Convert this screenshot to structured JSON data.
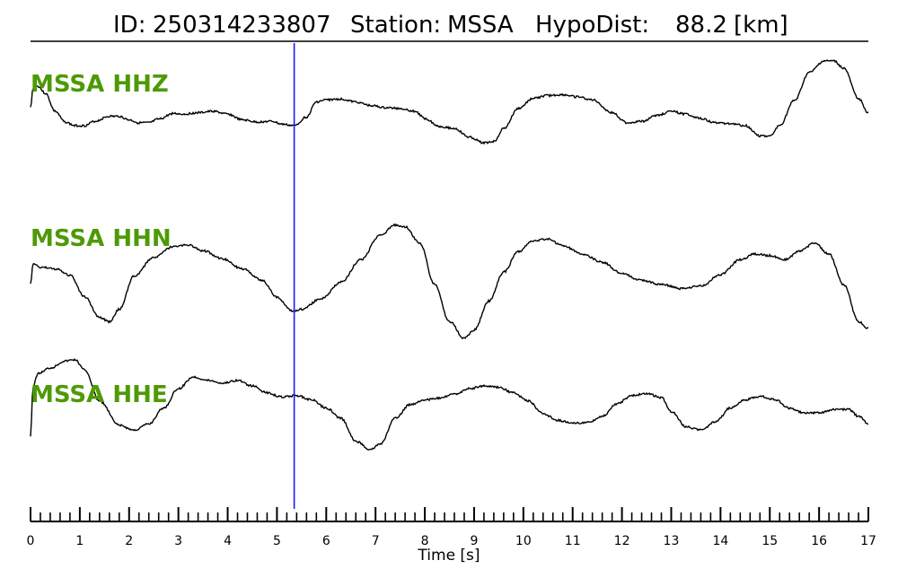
{
  "header": {
    "id_label": "ID:",
    "id_value": "250314233807",
    "station_label": "Station:",
    "station_value": "MSSA",
    "dist_label": "HypoDist:",
    "dist_value": "88.2",
    "dist_unit": "[km]"
  },
  "colors": {
    "trace": "#000000",
    "label": "#4e9a06",
    "marker": "#1a1aff",
    "axis": "#000000"
  },
  "chart_data": {
    "type": "line",
    "xlabel": "Time [s]",
    "xlim": [
      0,
      17
    ],
    "major_ticks": [
      0,
      1,
      2,
      3,
      4,
      5,
      6,
      7,
      8,
      9,
      10,
      11,
      12,
      13,
      14,
      15,
      16,
      17
    ],
    "minor_tick_step": 0.2,
    "marker_time": 5.35,
    "series": [
      {
        "name": "MSSA HHZ",
        "points": [
          [
            0,
            0.35
          ],
          [
            0.05,
            0.62
          ],
          [
            0.15,
            0.65
          ],
          [
            0.3,
            0.55
          ],
          [
            0.5,
            0.3
          ],
          [
            0.7,
            0.15
          ],
          [
            0.9,
            0.1
          ],
          [
            1.1,
            0.1
          ],
          [
            1.3,
            0.16
          ],
          [
            1.6,
            0.23
          ],
          [
            1.8,
            0.23
          ],
          [
            2.0,
            0.18
          ],
          [
            2.2,
            0.14
          ],
          [
            2.4,
            0.14
          ],
          [
            2.6,
            0.19
          ],
          [
            2.9,
            0.27
          ],
          [
            3.1,
            0.26
          ],
          [
            3.4,
            0.28
          ],
          [
            3.7,
            0.3
          ],
          [
            4.0,
            0.26
          ],
          [
            4.3,
            0.18
          ],
          [
            4.6,
            0.15
          ],
          [
            4.9,
            0.16
          ],
          [
            5.1,
            0.12
          ],
          [
            5.35,
            0.1
          ],
          [
            5.6,
            0.22
          ],
          [
            5.8,
            0.43
          ],
          [
            6.0,
            0.46
          ],
          [
            6.3,
            0.47
          ],
          [
            6.6,
            0.43
          ],
          [
            6.9,
            0.38
          ],
          [
            7.2,
            0.35
          ],
          [
            7.5,
            0.34
          ],
          [
            7.8,
            0.3
          ],
          [
            8.0,
            0.2
          ],
          [
            8.3,
            0.09
          ],
          [
            8.6,
            0.06
          ],
          [
            8.9,
            -0.06
          ],
          [
            9.2,
            -0.14
          ],
          [
            9.4,
            -0.12
          ],
          [
            9.6,
            0.06
          ],
          [
            9.9,
            0.34
          ],
          [
            10.2,
            0.48
          ],
          [
            10.5,
            0.52
          ],
          [
            10.8,
            0.53
          ],
          [
            11.1,
            0.5
          ],
          [
            11.4,
            0.46
          ],
          [
            11.8,
            0.28
          ],
          [
            12.1,
            0.14
          ],
          [
            12.4,
            0.16
          ],
          [
            12.7,
            0.24
          ],
          [
            13.0,
            0.3
          ],
          [
            13.3,
            0.26
          ],
          [
            13.6,
            0.2
          ],
          [
            13.9,
            0.14
          ],
          [
            14.2,
            0.13
          ],
          [
            14.5,
            0.1
          ],
          [
            14.8,
            -0.04
          ],
          [
            15.0,
            -0.05
          ],
          [
            15.2,
            0.1
          ],
          [
            15.5,
            0.45
          ],
          [
            15.8,
            0.84
          ],
          [
            16.1,
            1.0
          ],
          [
            16.3,
            1.0
          ],
          [
            16.5,
            0.9
          ],
          [
            16.8,
            0.48
          ],
          [
            17.0,
            0.28
          ]
        ]
      },
      {
        "name": "MSSA HHN",
        "points": [
          [
            0,
            0.25
          ],
          [
            0.05,
            0.5
          ],
          [
            0.2,
            0.46
          ],
          [
            0.5,
            0.44
          ],
          [
            0.8,
            0.36
          ],
          [
            1.1,
            0.1
          ],
          [
            1.4,
            -0.15
          ],
          [
            1.6,
            -0.2
          ],
          [
            1.8,
            -0.05
          ],
          [
            2.1,
            0.35
          ],
          [
            2.5,
            0.58
          ],
          [
            2.9,
            0.71
          ],
          [
            3.2,
            0.73
          ],
          [
            3.5,
            0.66
          ],
          [
            3.9,
            0.56
          ],
          [
            4.3,
            0.44
          ],
          [
            4.7,
            0.3
          ],
          [
            5.0,
            0.1
          ],
          [
            5.3,
            -0.07
          ],
          [
            5.5,
            -0.05
          ],
          [
            5.9,
            0.08
          ],
          [
            6.3,
            0.28
          ],
          [
            6.7,
            0.55
          ],
          [
            7.1,
            0.85
          ],
          [
            7.4,
            0.97
          ],
          [
            7.6,
            0.95
          ],
          [
            7.9,
            0.75
          ],
          [
            8.2,
            0.25
          ],
          [
            8.5,
            -0.2
          ],
          [
            8.8,
            -0.4
          ],
          [
            9.0,
            -0.3
          ],
          [
            9.3,
            0.05
          ],
          [
            9.6,
            0.4
          ],
          [
            9.9,
            0.65
          ],
          [
            10.2,
            0.78
          ],
          [
            10.5,
            0.8
          ],
          [
            10.8,
            0.72
          ],
          [
            11.2,
            0.62
          ],
          [
            11.6,
            0.52
          ],
          [
            12.0,
            0.38
          ],
          [
            12.4,
            0.3
          ],
          [
            12.8,
            0.25
          ],
          [
            13.2,
            0.2
          ],
          [
            13.6,
            0.23
          ],
          [
            14.0,
            0.37
          ],
          [
            14.4,
            0.55
          ],
          [
            14.7,
            0.62
          ],
          [
            15.0,
            0.6
          ],
          [
            15.3,
            0.55
          ],
          [
            15.6,
            0.65
          ],
          [
            15.9,
            0.75
          ],
          [
            16.2,
            0.62
          ],
          [
            16.5,
            0.25
          ],
          [
            16.8,
            -0.2
          ],
          [
            17.0,
            -0.28
          ]
        ]
      },
      {
        "name": "MSSA HHE",
        "points": [
          [
            0,
            -0.2
          ],
          [
            0.05,
            0.5
          ],
          [
            0.15,
            0.7
          ],
          [
            0.4,
            0.78
          ],
          [
            0.7,
            0.88
          ],
          [
            0.9,
            0.9
          ],
          [
            1.1,
            0.75
          ],
          [
            1.4,
            0.3
          ],
          [
            1.8,
            -0.05
          ],
          [
            2.1,
            -0.12
          ],
          [
            2.4,
            -0.03
          ],
          [
            2.7,
            0.2
          ],
          [
            3.0,
            0.48
          ],
          [
            3.3,
            0.65
          ],
          [
            3.6,
            0.6
          ],
          [
            3.9,
            0.56
          ],
          [
            4.2,
            0.6
          ],
          [
            4.5,
            0.52
          ],
          [
            4.8,
            0.42
          ],
          [
            5.1,
            0.36
          ],
          [
            5.4,
            0.38
          ],
          [
            5.7,
            0.32
          ],
          [
            6.0,
            0.2
          ],
          [
            6.3,
            0.05
          ],
          [
            6.6,
            -0.28
          ],
          [
            6.9,
            -0.4
          ],
          [
            7.1,
            -0.32
          ],
          [
            7.4,
            0.05
          ],
          [
            7.7,
            0.25
          ],
          [
            8.0,
            0.32
          ],
          [
            8.3,
            0.34
          ],
          [
            8.6,
            0.4
          ],
          [
            8.9,
            0.48
          ],
          [
            9.2,
            0.52
          ],
          [
            9.5,
            0.5
          ],
          [
            9.8,
            0.42
          ],
          [
            10.1,
            0.3
          ],
          [
            10.4,
            0.12
          ],
          [
            10.7,
            0.02
          ],
          [
            11.0,
            -0.02
          ],
          [
            11.3,
            -0.01
          ],
          [
            11.6,
            0.08
          ],
          [
            11.9,
            0.26
          ],
          [
            12.2,
            0.38
          ],
          [
            12.5,
            0.41
          ],
          [
            12.8,
            0.35
          ],
          [
            13.0,
            0.15
          ],
          [
            13.3,
            -0.07
          ],
          [
            13.6,
            -0.12
          ],
          [
            13.9,
            0.0
          ],
          [
            14.2,
            0.2
          ],
          [
            14.5,
            0.32
          ],
          [
            14.8,
            0.37
          ],
          [
            15.1,
            0.32
          ],
          [
            15.4,
            0.2
          ],
          [
            15.7,
            0.13
          ],
          [
            16.0,
            0.13
          ],
          [
            16.3,
            0.18
          ],
          [
            16.6,
            0.18
          ],
          [
            16.8,
            0.08
          ],
          [
            17.0,
            -0.02
          ]
        ]
      }
    ]
  }
}
